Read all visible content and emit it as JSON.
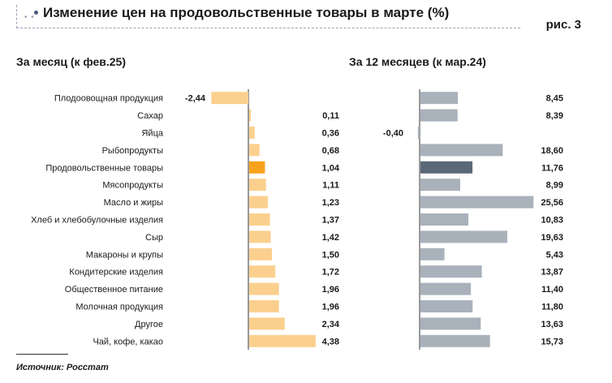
{
  "header": {
    "title": "Изменение цен на продовольственные товары в марте (%)",
    "figure_label": "рис. 3"
  },
  "colors": {
    "left_bar": "#fbd08e",
    "left_highlight": "#f7a21c",
    "right_bar": "#a9b2bb",
    "right_highlight": "#5b6877",
    "axis": "#333333"
  },
  "chart_data": [
    {
      "type": "bar",
      "orientation": "horizontal",
      "title": "За месяц (к фев.25)",
      "categories": [
        "Плодоовощная продукция",
        "Сахар",
        "Яйца",
        "Рыбопродукты",
        "Продовольственные товары",
        "Мясопродукты",
        "Масло и жиры",
        "Хлеб и хлебобулочные изделия",
        "Сыр",
        "Макароны и крупы",
        "Кондитерские изделия",
        "Общественное питание",
        "Молочная продукция",
        "Другое",
        "Чай, кофе, какао"
      ],
      "values": [
        -2.44,
        0.11,
        0.36,
        0.68,
        1.04,
        1.11,
        1.23,
        1.37,
        1.42,
        1.5,
        1.72,
        1.96,
        1.96,
        2.34,
        4.38
      ],
      "labels": [
        "-2,44",
        "0,11",
        "0,36",
        "0,68",
        "1,04",
        "1,11",
        "1,23",
        "1,37",
        "1,42",
        "1,50",
        "1,72",
        "1,96",
        "1,96",
        "2,34",
        "4,38"
      ],
      "highlight": "Продовольственные товары"
    },
    {
      "type": "bar",
      "orientation": "horizontal",
      "title": "За 12 месяцев (к мар.24)",
      "categories": [
        "Плодоовощная продукция",
        "Сахар",
        "Яйца",
        "Рыбопродукты",
        "Продовольственные товары",
        "Мясопродукты",
        "Масло и жиры",
        "Хлеб и хлебобулочные изделия",
        "Сыр",
        "Макароны и крупы",
        "Кондитерские изделия",
        "Общественное питание",
        "Молочная продукция",
        "Другое",
        "Чай, кофе, какао"
      ],
      "values": [
        8.45,
        8.39,
        -0.4,
        18.6,
        11.76,
        8.99,
        25.56,
        10.83,
        19.63,
        5.43,
        13.87,
        11.4,
        11.8,
        13.63,
        15.73
      ],
      "labels": [
        "8,45",
        "8,39",
        "-0,40",
        "18,60",
        "11,76",
        "8,99",
        "25,56",
        "10,83",
        "19,63",
        "5,43",
        "13,87",
        "11,40",
        "11,80",
        "13,63",
        "15,73"
      ],
      "highlight": "Продовольственные товары"
    }
  ],
  "source": "Источник: Росстат"
}
